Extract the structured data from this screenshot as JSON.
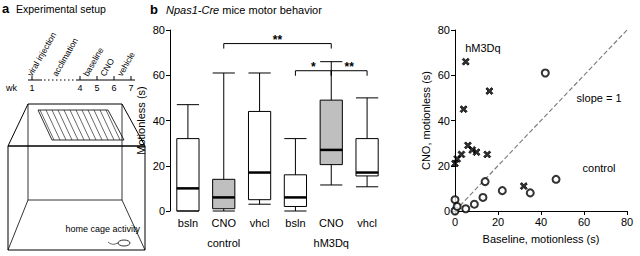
{
  "diagram": {
    "panel_label": "a",
    "title": "Experimental setup",
    "timeline": {
      "unit": "wk",
      "weeks": [
        1,
        4,
        5,
        6,
        7
      ],
      "events": [
        "viral injection",
        "acclimation",
        "baseline",
        "CNO",
        "vehicle"
      ]
    },
    "caption": "home cage activity"
  },
  "chart_data": [
    {
      "type": "boxplot",
      "panel_label": "b",
      "title": "Npas1-Cre mice motor behavior",
      "categories": [
        "bsln",
        "CNO",
        "vhcl",
        "bsln",
        "CNO",
        "vhcl"
      ],
      "groups": [
        "control",
        "hM3Dq"
      ],
      "values": [
        [
          0,
          0,
          10,
          32,
          47
        ],
        [
          0,
          1,
          6,
          14,
          61
        ],
        [
          3,
          5,
          17,
          44,
          61
        ],
        [
          0,
          2,
          6,
          16,
          32
        ],
        [
          11.5,
          20.5,
          27,
          49,
          66
        ],
        [
          10.7,
          15.5,
          17,
          32,
          50
        ]
      ],
      "colors": [
        "#ffffff",
        "#bfbfbf",
        "#ffffff",
        "#ffffff",
        "#bfbfbf",
        "#ffffff"
      ],
      "y_label": "Motionless (s)",
      "ylim": [
        0,
        80
      ],
      "yticks": [
        0,
        20,
        40,
        60,
        80
      ],
      "annotations": [
        {
          "text": "**",
          "from": 1,
          "to": 4,
          "y": 74
        },
        {
          "text": "*",
          "from": 3,
          "to": 4,
          "y": 62
        },
        {
          "text": "**",
          "from": 4,
          "to": 5,
          "y": 62
        }
      ]
    },
    {
      "type": "scatter",
      "x_label": "Baseline, motionless (s)",
      "y_label": "CNO, motionless (s)",
      "xlim": [
        0,
        80
      ],
      "xticks": [
        0,
        20,
        40,
        60,
        80
      ],
      "ylim": [
        0,
        80
      ],
      "yticks": [
        0,
        20,
        40,
        60,
        80
      ],
      "series": [
        {
          "name": "hM3Dq",
          "marker": "x",
          "color": "#000000",
          "label_xy": [
            13,
            72
          ],
          "x": [
            0,
            1,
            3,
            4,
            5,
            6,
            8,
            10,
            15,
            16,
            32
          ],
          "y": [
            21,
            23,
            25,
            45,
            66,
            29,
            27,
            26,
            25,
            53,
            11
          ]
        },
        {
          "name": "control",
          "marker": "circle_open",
          "color": "#000000",
          "label_xy": [
            67,
            19
          ],
          "x": [
            0,
            0,
            1,
            5,
            9,
            13,
            14,
            22,
            35,
            47,
            42
          ],
          "y": [
            0,
            5,
            2,
            1,
            3,
            6,
            13,
            9,
            8,
            14,
            61
          ]
        }
      ],
      "reference_line": {
        "label": "slope = 1",
        "label_xy": [
          67,
          50
        ],
        "x": [
          0,
          80
        ],
        "y": [
          0,
          80
        ],
        "line_style": "dashed",
        "color": "#808080"
      }
    }
  ]
}
